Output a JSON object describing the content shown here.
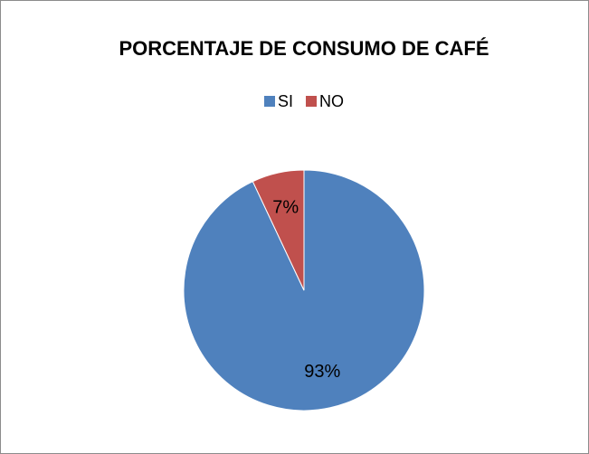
{
  "chart_data": {
    "type": "pie",
    "title": "PORCENTAJE DE CONSUMO DE CAFÉ",
    "categories": [
      "SI",
      "NO"
    ],
    "values": [
      93,
      7
    ],
    "value_labels": [
      "93%",
      "7%"
    ],
    "colors": [
      "#4f81bd",
      "#c0504d"
    ],
    "legend": "top"
  }
}
